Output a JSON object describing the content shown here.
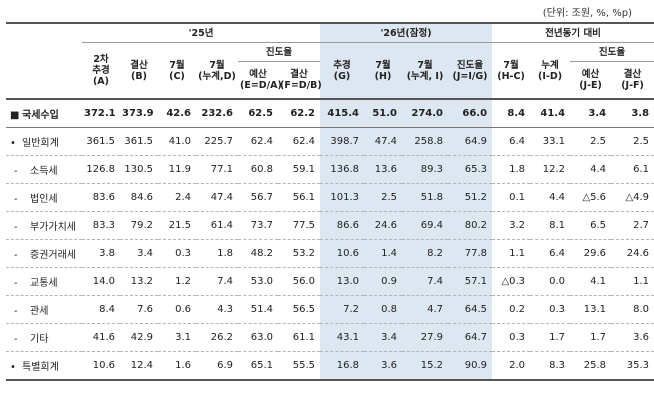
{
  "unit_note": "(단위: 조원, %, %p)",
  "headers": {
    "y25": "'25년",
    "y26": "'26년(잠정)",
    "yoy": "전년동기 대비",
    "progress": "진도율",
    "c_supp": "2차\n추경\n(A)",
    "c_settle": "결산\n(B)",
    "c_jul": "7월\n(C)",
    "c_julcum": "7월\n(누계,D)",
    "c_budget": "예산\n(E=D/A)",
    "c_settle2": "결산\n(F=D/B)",
    "c26_supp": "추경\n(G)",
    "c26_jul": "7월\n(H)",
    "c26_julcum": "7월\n(누계, I)",
    "c26_prog": "진도율\n(J=I/G)",
    "c_hc": "7월\n(H-C)",
    "c_id": "누계\n(I-D)",
    "c_je": "예산\n(J-E)",
    "c_jf": "결산\n(J-F)"
  },
  "rows": [
    {
      "prefix": "■",
      "label": "국세수입",
      "vals": [
        "372.1",
        "373.9",
        "42.6",
        "232.6",
        "62.5",
        "62.2",
        "415.4",
        "51.0",
        "274.0",
        "66.0",
        "8.4",
        "41.4",
        "3.4",
        "3.8"
      ]
    },
    {
      "prefix": "•",
      "label": "일반회계",
      "vals": [
        "361.5",
        "361.5",
        "41.0",
        "225.7",
        "62.4",
        "62.4",
        "398.7",
        "47.4",
        "258.8",
        "64.9",
        "6.4",
        "33.1",
        "2.5",
        "2.5"
      ]
    },
    {
      "prefix": "-",
      "label": "소득세",
      "vals": [
        "126.8",
        "130.5",
        "11.9",
        "77.1",
        "60.8",
        "59.1",
        "136.8",
        "13.6",
        "89.3",
        "65.3",
        "1.8",
        "12.2",
        "4.4",
        "6.1"
      ]
    },
    {
      "prefix": "-",
      "label": "법인세",
      "vals": [
        "83.6",
        "84.6",
        "2.4",
        "47.4",
        "56.7",
        "56.1",
        "101.3",
        "2.5",
        "51.8",
        "51.2",
        "0.1",
        "4.4",
        "△5.6",
        "△4.9"
      ]
    },
    {
      "prefix": "-",
      "label": "부가가치세",
      "vals": [
        "83.3",
        "79.2",
        "21.5",
        "61.4",
        "73.7",
        "77.5",
        "86.6",
        "24.6",
        "69.4",
        "80.2",
        "3.2",
        "8.1",
        "6.5",
        "2.7"
      ]
    },
    {
      "prefix": "-",
      "label": "증권거래세",
      "vals": [
        "3.8",
        "3.4",
        "0.3",
        "1.8",
        "48.2",
        "53.2",
        "10.6",
        "1.4",
        "8.2",
        "77.8",
        "1.1",
        "6.4",
        "29.6",
        "24.6"
      ]
    },
    {
      "prefix": "-",
      "label": "교통세",
      "vals": [
        "14.0",
        "13.2",
        "1.2",
        "7.4",
        "53.0",
        "56.0",
        "13.0",
        "0.9",
        "7.4",
        "57.1",
        "△0.3",
        "0.0",
        "4.1",
        "1.1"
      ]
    },
    {
      "prefix": "-",
      "label": "관세",
      "vals": [
        "8.4",
        "7.6",
        "0.6",
        "4.3",
        "51.4",
        "56.5",
        "7.2",
        "0.8",
        "4.7",
        "64.5",
        "0.2",
        "0.3",
        "13.1",
        "8.0"
      ]
    },
    {
      "prefix": "-",
      "label": "기타",
      "vals": [
        "41.6",
        "42.9",
        "3.1",
        "26.2",
        "63.0",
        "61.1",
        "43.1",
        "3.4",
        "27.9",
        "64.7",
        "0.3",
        "1.7",
        "1.7",
        "3.6"
      ]
    },
    {
      "prefix": "•",
      "label": "특별회계",
      "vals": [
        "10.6",
        "12.4",
        "1.6",
        "6.9",
        "65.1",
        "55.5",
        "16.8",
        "3.6",
        "15.2",
        "90.9",
        "2.0",
        "8.3",
        "25.8",
        "35.3"
      ]
    }
  ]
}
